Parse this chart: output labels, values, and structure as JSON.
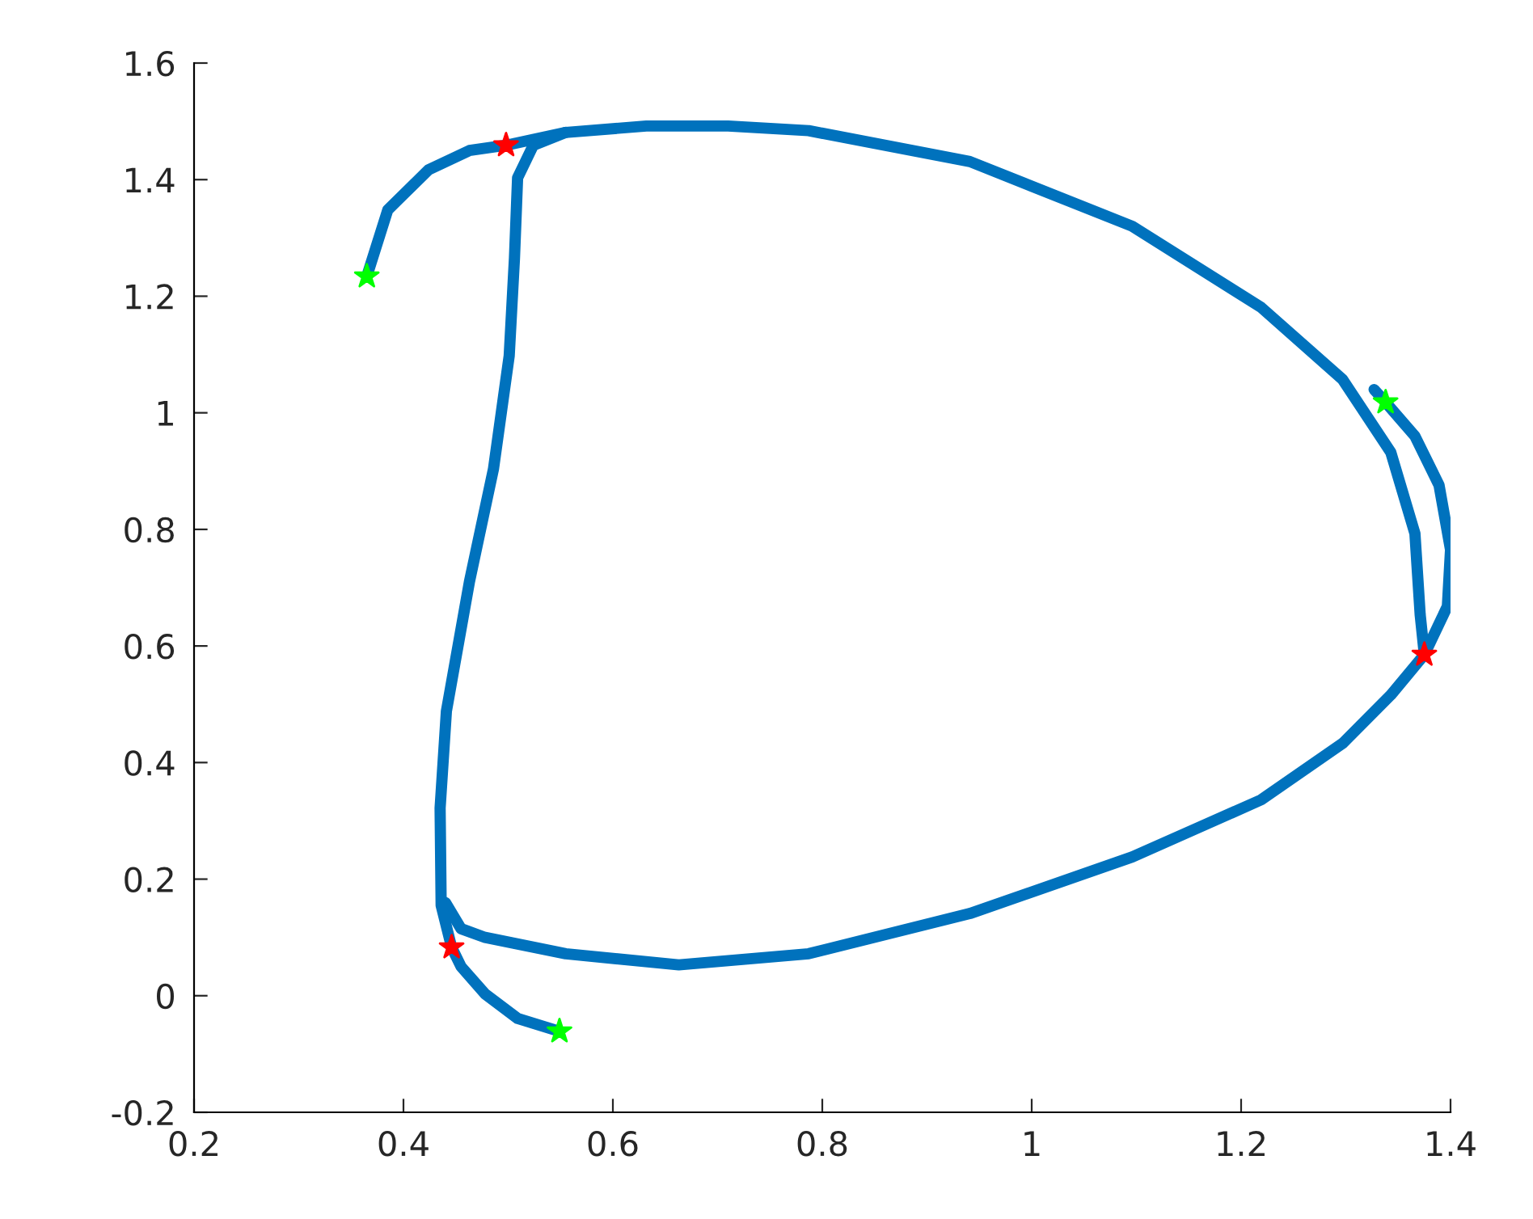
{
  "chart_data": {
    "type": "line",
    "xlim": [
      0.2,
      1.4
    ],
    "ylim": [
      -0.2,
      1.6
    ],
    "xticks": [
      0.2,
      0.4,
      0.6,
      0.8,
      1,
      1.2,
      1.4
    ],
    "yticks": [
      -0.2,
      0,
      0.2,
      0.4,
      0.6,
      0.8,
      1,
      1.2,
      1.4,
      1.6
    ],
    "grid": false,
    "legend": false,
    "line_style": "solid",
    "marker": "none",
    "series": [
      {
        "color": "#0072bd",
        "x": [
          0.365,
          0.385,
          0.424,
          0.463,
          0.498
        ],
        "values": [
          1.234,
          1.348,
          1.417,
          1.45,
          1.459
        ]
      },
      {
        "color": "#0072bd",
        "x": [
          0.498,
          0.555,
          0.632,
          0.71,
          0.787,
          0.941,
          1.096,
          1.219,
          1.297,
          1.343,
          1.366,
          1.371,
          1.375
        ],
        "values": [
          1.459,
          1.481,
          1.492,
          1.492,
          1.484,
          1.431,
          1.32,
          1.181,
          1.057,
          0.932,
          0.793,
          0.654,
          0.585
        ]
      },
      {
        "color": "#0072bd",
        "x": [
          1.327,
          1.338,
          1.366,
          1.389,
          1.4,
          1.397,
          1.375
        ],
        "values": [
          1.04,
          1.018,
          0.96,
          0.876,
          0.765,
          0.668,
          0.585
        ]
      },
      {
        "color": "#0072bd",
        "x": [
          1.375,
          1.343,
          1.297,
          1.219,
          1.096,
          0.941,
          0.787,
          0.663,
          0.555,
          0.478,
          0.455,
          0.44
        ],
        "values": [
          0.585,
          0.516,
          0.433,
          0.336,
          0.238,
          0.141,
          0.072,
          0.053,
          0.072,
          0.1,
          0.115,
          0.16
        ]
      },
      {
        "color": "#0072bd",
        "x": [
          0.549,
          0.509,
          0.478,
          0.455,
          0.446,
          0.436,
          0.435,
          0.441,
          0.463,
          0.486,
          0.501,
          0.506,
          0.509,
          0.524,
          0.555
        ],
        "values": [
          -0.061,
          -0.039,
          0.003,
          0.05,
          0.083,
          0.155,
          0.322,
          0.488,
          0.71,
          0.904,
          1.098,
          1.265,
          1.403,
          1.459,
          1.481
        ]
      },
      {
        "type": "scatter",
        "marker": "star",
        "color": "#ff0000",
        "x": [
          0.498,
          1.375,
          0.446
        ],
        "values": [
          1.459,
          0.585,
          0.083
        ]
      },
      {
        "type": "scatter",
        "marker": "star",
        "color": "#00ff00",
        "x": [
          0.365,
          1.338,
          0.549
        ],
        "values": [
          1.234,
          1.018,
          -0.061
        ]
      }
    ]
  }
}
